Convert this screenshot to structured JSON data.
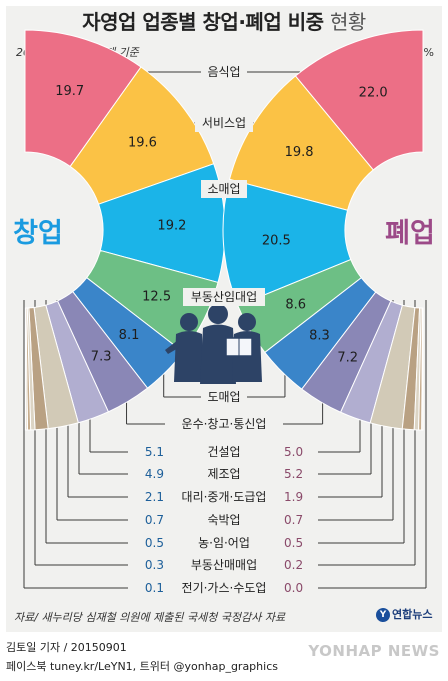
{
  "header": {
    "title_bold": "자영업 업종별 창업·폐업 비중",
    "title_light": "현황",
    "period": "2004~2013년 합계 기준",
    "unit": "단위: %"
  },
  "chart_data": {
    "type": "pie",
    "left_label": "창업",
    "right_label": "폐업",
    "categories": [
      "음식업",
      "서비스업",
      "소매업",
      "부동산임대업",
      "도매업",
      "운수·창고·통신업",
      "건설업",
      "제조업",
      "대리·중개·도급업",
      "숙박업",
      "농·임·어업",
      "부동산매매업",
      "전기·가스·수도업"
    ],
    "series": [
      {
        "name": "창업",
        "values": [
          19.7,
          19.6,
          19.2,
          12.5,
          8.1,
          7.3,
          5.1,
          4.9,
          2.1,
          0.7,
          0.5,
          0.3,
          0.1
        ]
      },
      {
        "name": "폐업",
        "values": [
          22.0,
          19.8,
          20.5,
          8.6,
          8.3,
          7.2,
          5.0,
          5.2,
          1.9,
          0.7,
          0.5,
          0.2,
          0.0
        ]
      }
    ],
    "colors": [
      "#ec6f86",
      "#fbc245",
      "#1bb4e8",
      "#6dbf85",
      "#3a85c9",
      "#8a87b6",
      "#b1aed0",
      "#d2cab7",
      "#b9a183",
      "#dcd4c4",
      "#c7ad8d",
      "#e8dfcf",
      "#a69b8a"
    ]
  },
  "footer": {
    "source": "자료/ 새누리당 심재철 의원에 제출된 국세청 국정감사 자료",
    "logo_mark": "Y",
    "logo_text": "연합뉴스",
    "byline": "김토일 기자 / 20150901",
    "social": "페이스북 tuney.kr/LeYN1, 트위터 @yonhap_graphics",
    "watermark": "YONHAP NEWS"
  }
}
